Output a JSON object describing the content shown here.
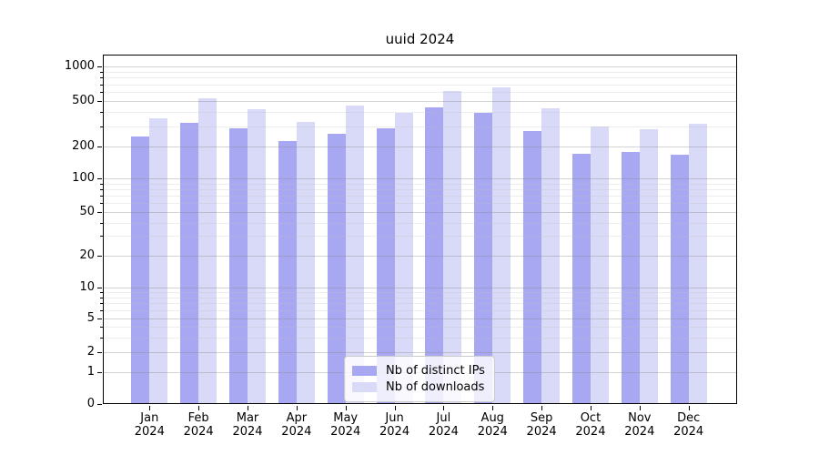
{
  "title": "uuid 2024",
  "chart_data": {
    "type": "bar",
    "categories": [
      "Jan 2024",
      "Feb 2024",
      "Mar 2024",
      "Apr 2024",
      "May 2024",
      "Jun 2024",
      "Jul 2024",
      "Aug 2024",
      "Sep 2024",
      "Oct 2024",
      "Nov 2024",
      "Dec 2024"
    ],
    "series": [
      {
        "name": "Nb of distinct IPs",
        "color": "#a8a8f2",
        "values": [
          245,
          320,
          288,
          224,
          256,
          288,
          440,
          390,
          270,
          170,
          177,
          165
        ]
      },
      {
        "name": "Nb of downloads",
        "color": "#d9d9f8",
        "values": [
          355,
          525,
          425,
          330,
          455,
          397,
          615,
          655,
          435,
          296,
          281,
          315
        ]
      }
    ],
    "title": "uuid 2024",
    "xlabel": "",
    "ylabel": "",
    "yscale": "symlog",
    "yticks": [
      0,
      1,
      2,
      5,
      10,
      20,
      50,
      100,
      200,
      500,
      1000
    ],
    "ylim": [
      0,
      1250
    ],
    "grid": true,
    "legend_position": "lower center"
  }
}
